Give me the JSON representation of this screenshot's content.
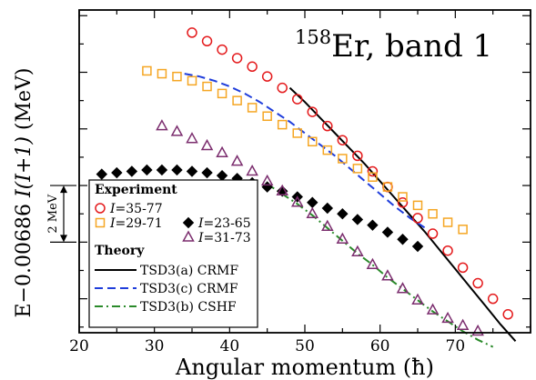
{
  "chart_data": {
    "type": "scatter",
    "title": "Er, band 1",
    "title_superscript": "158",
    "xlabel": "Angular momentum (ħ)",
    "ylabel": {
      "prefix": "E−0.00686 ",
      "italic": "I(I+1)",
      "suffix": " (MeV)"
    },
    "xlim": [
      20,
      80
    ],
    "xticks": [
      20,
      30,
      40,
      50,
      60,
      70
    ],
    "ylim": [
      -1.2,
      10.2
    ],
    "grid": false,
    "scale_bar": {
      "label": "2 MeV",
      "y": [
        2,
        4
      ]
    },
    "legend": {
      "position": "bottom-left",
      "experiment_heading": "Experiment",
      "theory_heading": "Theory",
      "experiment": [
        {
          "range": "=35-77",
          "series": 0
        },
        {
          "range": "=29-71",
          "series": 1
        },
        {
          "range": "=23-65",
          "series": 2
        },
        {
          "range": "=31-73",
          "series": 3
        }
      ],
      "theory": [
        {
          "label": "TSD3(a) CRMF",
          "series": 4
        },
        {
          "label": "TSD3(c) CRMF",
          "series": 5
        },
        {
          "label": "TSD3(b) CSHF",
          "series": 6
        }
      ],
      "italic_symbol": "I"
    },
    "series": [
      {
        "kind": "points",
        "marker": "circle",
        "color": "#e41a1c",
        "x": [
          35,
          37,
          39,
          41,
          43,
          45,
          47,
          49,
          51,
          53,
          55,
          57,
          59,
          61,
          63,
          65,
          67,
          69,
          71,
          73,
          75,
          77
        ],
        "y": [
          9.4,
          9.1,
          8.8,
          8.5,
          8.2,
          7.85,
          7.45,
          7.05,
          6.6,
          6.1,
          5.6,
          5.05,
          4.5,
          3.95,
          3.4,
          2.85,
          2.3,
          1.7,
          1.1,
          0.55,
          0.0,
          -0.55
        ]
      },
      {
        "kind": "points",
        "marker": "square",
        "color": "#f5a623",
        "x": [
          29,
          31,
          33,
          35,
          37,
          39,
          41,
          43,
          45,
          47,
          49,
          51,
          53,
          55,
          57,
          59,
          61,
          63,
          65,
          67,
          69,
          71
        ],
        "y": [
          8.05,
          7.95,
          7.85,
          7.7,
          7.5,
          7.25,
          7.0,
          6.75,
          6.45,
          6.15,
          5.85,
          5.55,
          5.25,
          4.95,
          4.6,
          4.3,
          3.95,
          3.6,
          3.3,
          3.0,
          2.7,
          2.45
        ]
      },
      {
        "kind": "points",
        "marker": "diamond",
        "color": "#000000",
        "x": [
          23,
          25,
          27,
          29,
          31,
          33,
          35,
          37,
          39,
          41,
          43,
          45,
          47,
          49,
          51,
          53,
          55,
          57,
          59,
          61,
          63,
          65
        ],
        "y": [
          4.4,
          4.45,
          4.5,
          4.55,
          4.55,
          4.55,
          4.5,
          4.45,
          4.35,
          4.25,
          4.1,
          3.95,
          3.8,
          3.6,
          3.4,
          3.2,
          3.0,
          2.8,
          2.6,
          2.35,
          2.1,
          1.85
        ]
      },
      {
        "kind": "points",
        "marker": "triangle",
        "color": "#7b2d6e",
        "x": [
          31,
          33,
          35,
          37,
          39,
          41,
          43,
          45,
          47,
          49,
          51,
          53,
          55,
          57,
          59,
          61,
          63,
          65,
          67,
          69,
          71,
          73
        ],
        "y": [
          6.1,
          5.9,
          5.65,
          5.4,
          5.15,
          4.85,
          4.5,
          4.15,
          3.8,
          3.4,
          3.0,
          2.55,
          2.1,
          1.65,
          1.2,
          0.8,
          0.35,
          -0.05,
          -0.4,
          -0.7,
          -0.95,
          -1.15
        ]
      },
      {
        "kind": "line",
        "dash": "solid",
        "color": "#000000",
        "x": [
          48,
          50,
          52,
          54,
          56,
          58,
          60,
          62,
          64,
          66,
          68,
          70,
          72,
          74,
          76,
          78
        ],
        "y": [
          7.45,
          6.95,
          6.4,
          5.85,
          5.3,
          4.75,
          4.15,
          3.55,
          2.95,
          2.35,
          1.7,
          1.05,
          0.4,
          -0.25,
          -0.9,
          -1.5
        ]
      },
      {
        "kind": "line",
        "dash": "dashed",
        "color": "#1f3ddb",
        "x": [
          34,
          36,
          38,
          40,
          42,
          44,
          46,
          48,
          50,
          52,
          54,
          56,
          58,
          60,
          62,
          64,
          66
        ],
        "y": [
          7.95,
          7.85,
          7.7,
          7.5,
          7.25,
          6.95,
          6.6,
          6.25,
          5.85,
          5.45,
          5.05,
          4.6,
          4.15,
          3.7,
          3.25,
          2.85,
          2.5
        ]
      },
      {
        "kind": "line",
        "dash": "dashdot",
        "color": "#2a8a2a",
        "x": [
          45,
          47,
          49,
          51,
          53,
          55,
          57,
          59,
          61,
          63,
          65,
          67,
          69,
          71,
          73,
          75
        ],
        "y": [
          4.05,
          3.7,
          3.35,
          2.95,
          2.5,
          2.05,
          1.6,
          1.2,
          0.75,
          0.35,
          -0.05,
          -0.45,
          -0.8,
          -1.15,
          -1.45,
          -1.7
        ]
      }
    ]
  }
}
